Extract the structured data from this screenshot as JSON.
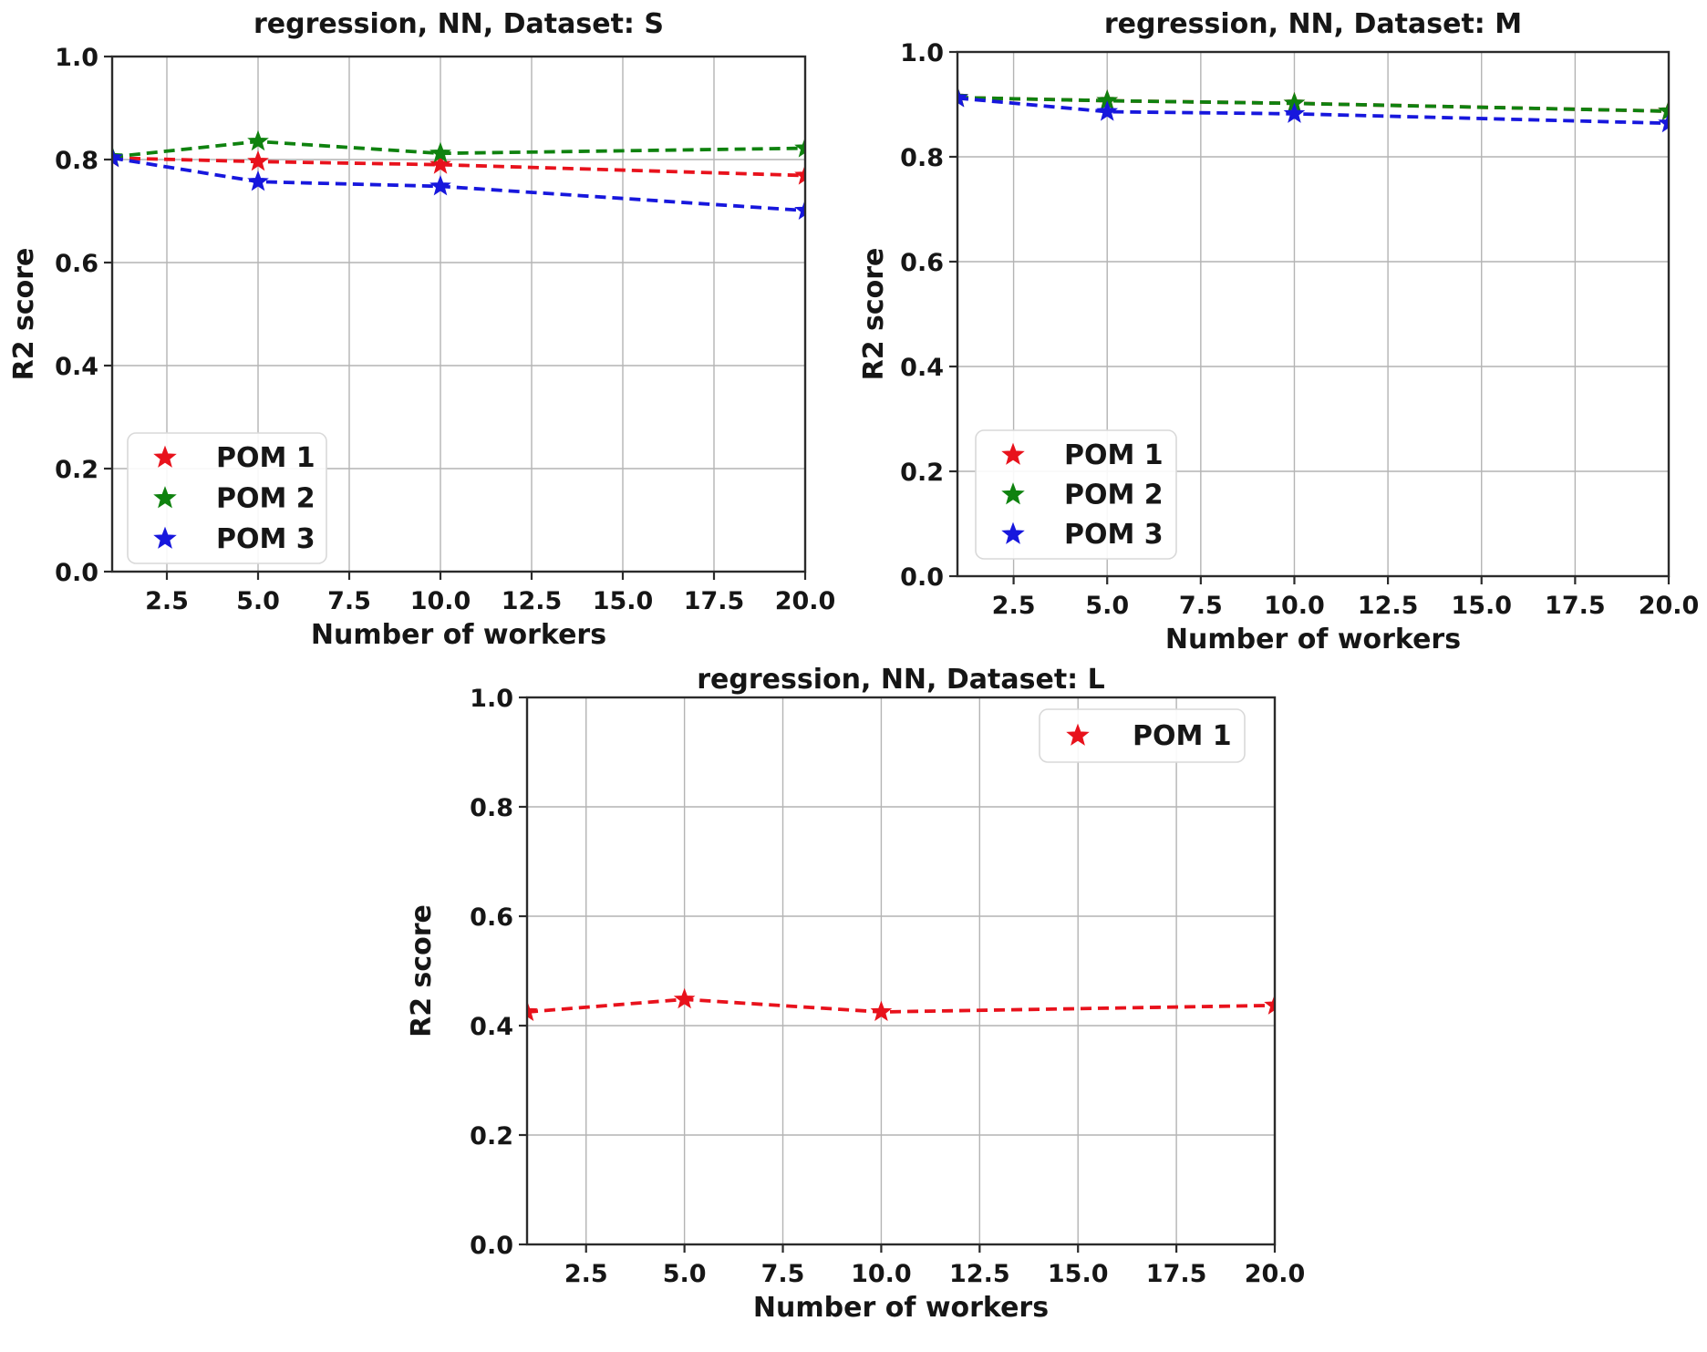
{
  "figure": {
    "background": "#ffffff",
    "text_color": "#161616",
    "grid_color": "#b4b4b4",
    "spine_color": "#2b2b2b",
    "legend_border_color": "#d9d9d9",
    "legend_background": "#ffffff"
  },
  "chart_data": [
    {
      "type": "line",
      "title": "regression, NN, Dataset: S",
      "xlabel": "Number of workers",
      "ylabel": "R2 score",
      "xlim": [
        1,
        20
      ],
      "ylim": [
        0,
        1
      ],
      "grid": true,
      "legend_position": "lower left",
      "xticks": [
        2.5,
        5.0,
        7.5,
        10.0,
        12.5,
        15.0,
        17.5,
        20.0
      ],
      "yticks": [
        0.0,
        0.2,
        0.4,
        0.6,
        0.8,
        1.0
      ],
      "xtick_labels": [
        "2.5",
        "5.0",
        "7.5",
        "10.0",
        "12.5",
        "15.0",
        "17.5",
        "20.0"
      ],
      "ytick_labels": [
        "0.0",
        "0.2",
        "0.4",
        "0.6",
        "0.8",
        "1.0"
      ],
      "x": [
        1,
        5,
        10,
        20
      ],
      "line_style": "dashed",
      "marker": "star",
      "series": [
        {
          "name": "POM 1",
          "color": "#e8121c",
          "values": [
            0.803,
            0.796,
            0.79,
            0.769
          ]
        },
        {
          "name": "POM 2",
          "color": "#0f820f",
          "values": [
            0.805,
            0.835,
            0.812,
            0.822
          ]
        },
        {
          "name": "POM 3",
          "color": "#1717dd",
          "values": [
            0.803,
            0.757,
            0.748,
            0.701
          ]
        }
      ]
    },
    {
      "type": "line",
      "title": "regression, NN, Dataset: M",
      "xlabel": "Number of workers",
      "ylabel": "R2 score",
      "xlim": [
        1,
        20
      ],
      "ylim": [
        0,
        1
      ],
      "grid": true,
      "legend_position": "lower left",
      "xticks": [
        2.5,
        5.0,
        7.5,
        10.0,
        12.5,
        15.0,
        17.5,
        20.0
      ],
      "yticks": [
        0.0,
        0.2,
        0.4,
        0.6,
        0.8,
        1.0
      ],
      "xtick_labels": [
        "2.5",
        "5.0",
        "7.5",
        "10.0",
        "12.5",
        "15.0",
        "17.5",
        "20.0"
      ],
      "ytick_labels": [
        "0.0",
        "0.2",
        "0.4",
        "0.6",
        "0.8",
        "1.0"
      ],
      "x": [
        1,
        5,
        10,
        20
      ],
      "line_style": "dashed",
      "marker": "star",
      "series": [
        {
          "name": "POM 1",
          "color": "#e8121c",
          "values": [
            0.913,
            0.907,
            0.902,
            0.887
          ]
        },
        {
          "name": "POM 2",
          "color": "#0f820f",
          "values": [
            0.913,
            0.907,
            0.902,
            0.887
          ]
        },
        {
          "name": "POM 3",
          "color": "#1717dd",
          "values": [
            0.912,
            0.886,
            0.882,
            0.864
          ]
        }
      ]
    },
    {
      "type": "line",
      "title": "regression, NN, Dataset: L",
      "xlabel": "Number of workers",
      "ylabel": "R2 score",
      "xlim": [
        1,
        20
      ],
      "ylim": [
        0,
        1
      ],
      "grid": true,
      "legend_position": "upper right",
      "xticks": [
        2.5,
        5.0,
        7.5,
        10.0,
        12.5,
        15.0,
        17.5,
        20.0
      ],
      "yticks": [
        0.0,
        0.2,
        0.4,
        0.6,
        0.8,
        1.0
      ],
      "xtick_labels": [
        "2.5",
        "5.0",
        "7.5",
        "10.0",
        "12.5",
        "15.0",
        "17.5",
        "20.0"
      ],
      "ytick_labels": [
        "0.0",
        "0.2",
        "0.4",
        "0.6",
        "0.8",
        "1.0"
      ],
      "x": [
        1,
        5,
        10,
        20
      ],
      "line_style": "dashed",
      "marker": "star",
      "series": [
        {
          "name": "POM 1",
          "color": "#e8121c",
          "values": [
            0.425,
            0.448,
            0.425,
            0.437
          ]
        }
      ]
    }
  ]
}
